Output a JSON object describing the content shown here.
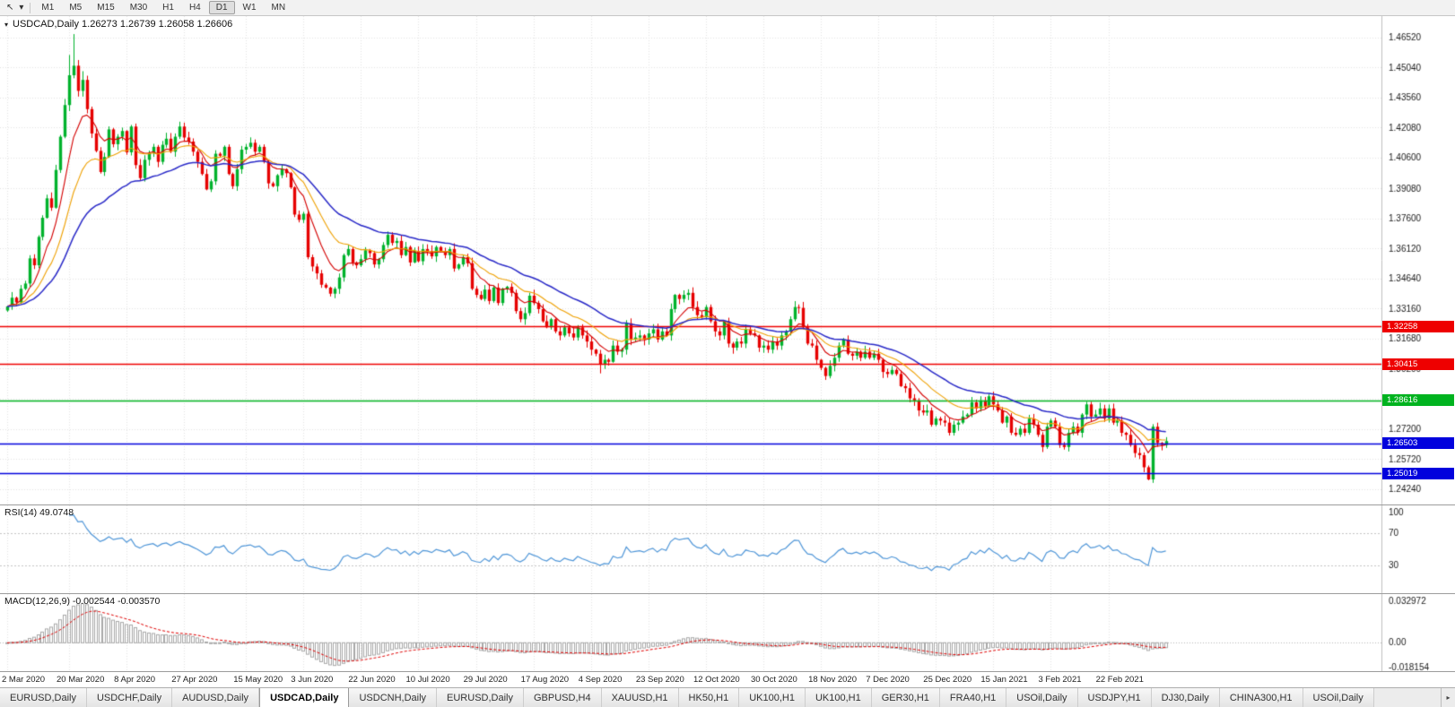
{
  "toolbar": {
    "timeframes": [
      "M1",
      "M5",
      "M15",
      "M30",
      "H1",
      "H4",
      "D1",
      "W1",
      "MN"
    ],
    "active_timeframe": "D1"
  },
  "chart_data": {
    "type": "candlestick",
    "symbol": "USDCAD",
    "timeframe": "Daily",
    "title": "USDCAD,Daily",
    "title_line": "USDCAD,Daily 1.26273 1.26739 1.26058 1.26606",
    "ohlc_display": {
      "open": "1.26273",
      "high": "1.26739",
      "low": "1.26058",
      "close": "1.26606"
    },
    "y_domain": [
      1.2375,
      1.473
    ],
    "y_ticks": [
      "1.46520",
      "1.45040",
      "1.43560",
      "1.42080",
      "1.40600",
      "1.39080",
      "1.37600",
      "1.36120",
      "1.34640",
      "1.33160",
      "1.31680",
      "1.30200",
      "1.28720",
      "1.27200",
      "1.25720",
      "1.24240"
    ],
    "x_labels": [
      {
        "label": "2 Mar 2020",
        "i": 0
      },
      {
        "label": "20 Mar 2020",
        "i": 14
      },
      {
        "label": "8 Apr 2020",
        "i": 27
      },
      {
        "label": "27 Apr 2020",
        "i": 40
      },
      {
        "label": "15 May 2020",
        "i": 54
      },
      {
        "label": "3 Jun 2020",
        "i": 67
      },
      {
        "label": "22 Jun 2020",
        "i": 80
      },
      {
        "label": "10 Jul 2020",
        "i": 93
      },
      {
        "label": "29 Jul 2020",
        "i": 106
      },
      {
        "label": "17 Aug 2020",
        "i": 119
      },
      {
        "label": "4 Sep 2020",
        "i": 132
      },
      {
        "label": "23 Sep 2020",
        "i": 145
      },
      {
        "label": "12 Oct 2020",
        "i": 158
      },
      {
        "label": "30 Oct 2020",
        "i": 171
      },
      {
        "label": "18 Nov 2020",
        "i": 184
      },
      {
        "label": "7 Dec 2020",
        "i": 197
      },
      {
        "label": "25 Dec 2020",
        "i": 210
      },
      {
        "label": "15 Jan 2021",
        "i": 223
      },
      {
        "label": "3 Feb 2021",
        "i": 236
      },
      {
        "label": "22 Feb 2021",
        "i": 249
      }
    ],
    "levels": [
      {
        "price": 1.32258,
        "label": "1.32258",
        "color": "#ee0000"
      },
      {
        "price": 1.30415,
        "label": "1.30415",
        "color": "#ee0000"
      },
      {
        "price": 1.28616,
        "label": "1.28616",
        "color": "#00b31f"
      },
      {
        "price": 1.26503,
        "label": "1.26503",
        "color": "#0202dd"
      },
      {
        "price": 1.25019,
        "label": "1.25019",
        "color": "#0202dd"
      }
    ],
    "moving_averages": [
      {
        "period": 8,
        "color": "#d40000",
        "width": 1.1
      },
      {
        "period": 17,
        "color": "#efa000",
        "width": 1.1
      },
      {
        "period": 34,
        "color": "#2a2ac8",
        "width": 1.5
      }
    ],
    "closes": [
      1.3325,
      1.3368,
      1.3345,
      1.3412,
      1.3438,
      1.3562,
      1.3528,
      1.3668,
      1.3762,
      1.3858,
      1.3812,
      1.3998,
      1.4162,
      1.4318,
      1.4465,
      1.4512,
      1.4388,
      1.4442,
      1.4298,
      1.4178,
      1.4092,
      1.3988,
      1.4062,
      1.4198,
      1.4125,
      1.4162,
      1.419,
      1.4085,
      1.4212,
      1.4022,
      1.3958,
      1.4048,
      1.4082,
      1.4112,
      1.4038,
      1.4122,
      1.4152,
      1.4088,
      1.4162,
      1.4212,
      1.4158,
      1.4138,
      1.4088,
      1.4038,
      1.3978,
      1.3902,
      1.3942,
      1.4078,
      1.4068,
      1.4112,
      1.3978,
      1.3918,
      1.4002,
      1.4098,
      1.4112,
      1.4132,
      1.4088,
      1.4112,
      1.4038,
      1.3932,
      1.3918,
      1.3972,
      1.4002,
      1.3982,
      1.3912,
      1.3778,
      1.3752,
      1.3782,
      1.3568,
      1.3522,
      1.3488,
      1.3432,
      1.3418,
      1.3388,
      1.3412,
      1.3468,
      1.3578,
      1.3608,
      1.3542,
      1.3528,
      1.3558,
      1.3602,
      1.3588,
      1.3532,
      1.3558,
      1.3628,
      1.3678,
      1.3638,
      1.3648,
      1.3578,
      1.3618,
      1.3542,
      1.3598,
      1.3548,
      1.3608,
      1.3598,
      1.3572,
      1.3618,
      1.3598,
      1.3578,
      1.3608,
      1.3512,
      1.3532,
      1.3568,
      1.3538,
      1.3412,
      1.3382,
      1.3362,
      1.3408,
      1.3352,
      1.3418,
      1.3342,
      1.3412,
      1.3422,
      1.3392,
      1.3302,
      1.3262,
      1.3292,
      1.3378,
      1.3342,
      1.3312,
      1.3252,
      1.3222,
      1.3262,
      1.3202,
      1.3182,
      1.3222,
      1.3192,
      1.3172,
      1.3222,
      1.3182,
      1.3152,
      1.3112,
      1.3092,
      1.3042,
      1.3062,
      1.3052,
      1.3132,
      1.3102,
      1.3112,
      1.3242,
      1.3162,
      1.3172,
      1.3182,
      1.3162,
      1.3192,
      1.3212,
      1.3162,
      1.3202,
      1.3182,
      1.3312,
      1.3382,
      1.3362,
      1.3382,
      1.3392,
      1.3322,
      1.3282,
      1.3272,
      1.3322,
      1.3252,
      1.3202,
      1.3182,
      1.3252,
      1.3142,
      1.3122,
      1.3152,
      1.3142,
      1.3212,
      1.3192,
      1.3182,
      1.3122,
      1.3132,
      1.3112,
      1.3152,
      1.3132,
      1.3182,
      1.3202,
      1.3262,
      1.3322,
      1.3318,
      1.3222,
      1.3142,
      1.3132,
      1.3062,
      1.3022,
      1.2982,
      1.3032,
      1.3072,
      1.3132,
      1.3162,
      1.3092,
      1.3082,
      1.3102,
      1.3072,
      1.3102,
      1.3072,
      1.3092,
      1.3062,
      1.3002,
      1.2992,
      1.3012,
      1.2992,
      1.2932,
      1.2922,
      1.2872,
      1.2862,
      1.2812,
      1.2802,
      1.2812,
      1.2742,
      1.2772,
      1.2762,
      1.2752,
      1.2702,
      1.2742,
      1.2752,
      1.2782,
      1.2792,
      1.2852,
      1.2822,
      1.2862,
      1.2832,
      1.2882,
      1.2842,
      1.2812,
      1.2752,
      1.2782,
      1.2702,
      1.2692,
      1.2722,
      1.2702,
      1.2772,
      1.2742,
      1.2692,
      1.2632,
      1.2732,
      1.2762,
      1.2732,
      1.2642,
      1.2632,
      1.2702,
      1.2732,
      1.2702,
      1.2792,
      1.2842,
      1.2782,
      1.2792,
      1.2822,
      1.2772,
      1.2822,
      1.2752,
      1.2762,
      1.2702,
      1.2692,
      1.2642,
      1.2602,
      1.2592,
      1.2532,
      1.2472,
      1.2732,
      1.2652,
      1.2642,
      1.2661
    ],
    "wick_overrides": {
      "14": {
        "high": 1.4565
      },
      "15": {
        "high": 1.4668
      },
      "17": {
        "high": 1.4485
      },
      "134": {
        "low": 1.2995
      },
      "258": {
        "low": 1.2468
      }
    },
    "indicators": {
      "rsi": {
        "label": "RSI(14) 49.0748",
        "period": 14,
        "levels": [
          100,
          70,
          30
        ]
      },
      "macd": {
        "label": "MACD(12,26,9) -0.002544 -0.003570",
        "fast": 12,
        "slow": 26,
        "signal": 9,
        "domain": [
          -0.018154,
          0.032972
        ],
        "y_ticks": [
          {
            "v": 0.032972,
            "label": "0.032972"
          },
          {
            "v": 0,
            "label": "0.00"
          },
          {
            "v": -0.018154,
            "label": "-0.018154"
          }
        ]
      }
    }
  },
  "tabs": {
    "active_index": 3,
    "items": [
      "EURUSD,Daily",
      "USDCHF,Daily",
      "AUDUSD,Daily",
      "USDCAD,Daily",
      "USDCNH,Daily",
      "EURUSD,Daily",
      "GBPUSD,H4",
      "XAUUSD,H1",
      "HK50,H1",
      "UK100,H1",
      "UK100,H1",
      "GER30,H1",
      "FRA40,H1",
      "USOil,Daily",
      "USDJPY,H1",
      "DJ30,Daily",
      "CHINA300,H1",
      "USOil,Daily"
    ],
    "scroll_right_icon": "▸"
  },
  "colors": {
    "candle_up": "#00b22c",
    "candle_down": "#e60000",
    "grid": "#e3e3e3",
    "rsi_line": "#4f96d8",
    "macd_hist": "#a8a8a8",
    "macd_signal": "#e00000",
    "axis_text": "#1a1a1a"
  }
}
